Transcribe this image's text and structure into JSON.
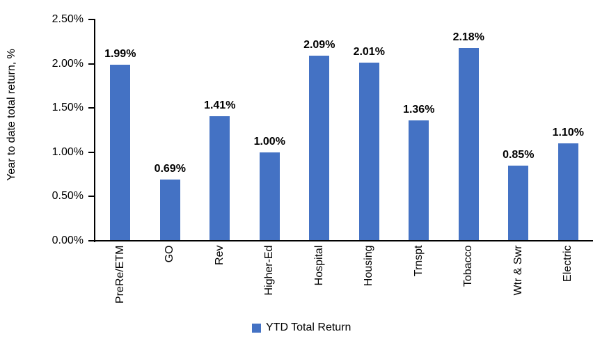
{
  "chart_data": {
    "type": "bar",
    "title": "",
    "categories": [
      "PreRe/ETM",
      "GO",
      "Rev",
      "Higher-Ed",
      "Hospital",
      "Housing",
      "Trnspt",
      "Tobacco",
      "Wtr & Swr",
      "Electric"
    ],
    "values": [
      1.99,
      0.69,
      1.41,
      1.0,
      2.09,
      2.01,
      1.36,
      2.18,
      0.85,
      1.1
    ],
    "value_labels": [
      "1.99%",
      "0.69%",
      "1.41%",
      "1.00%",
      "2.09%",
      "2.01%",
      "1.36%",
      "2.18%",
      "0.85%",
      "1.10%"
    ],
    "xlabel": "",
    "ylabel": "Year to date total return, %",
    "y_ticks": [
      "0.00%",
      "0.50%",
      "1.00%",
      "1.50%",
      "2.00%",
      "2.50%"
    ],
    "ylim": [
      0,
      2.5
    ],
    "grid": false,
    "bar_color": "#4472C4",
    "axis_color": "#000000",
    "legend": {
      "position": "bottom",
      "entries": [
        {
          "label": "YTD Total Return",
          "color": "#4472C4"
        }
      ]
    }
  }
}
